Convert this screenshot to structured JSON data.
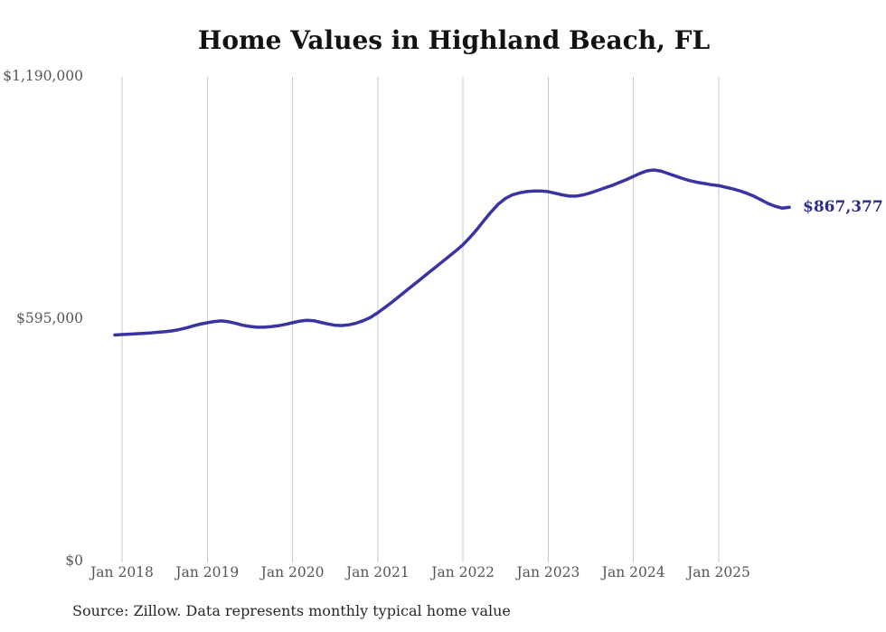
{
  "source_note": "Source: Zillow. Data represents monthly typical home value",
  "chart_data": {
    "type": "line",
    "title": "Home Values in Highland Beach, FL",
    "xlabel": "",
    "ylabel": "",
    "ylim": [
      0,
      1190000
    ],
    "grid": "vertical-only",
    "legend": "none",
    "line_color": "#3a34a3",
    "end_label_color": "#2b2d8e",
    "end_label": "$867,377",
    "end_value": 867377,
    "x_ticks": [
      "Jan 2018",
      "Jan 2019",
      "Jan 2020",
      "Jan 2021",
      "Jan 2022",
      "Jan 2023",
      "Jan 2024",
      "Jan 2025"
    ],
    "y_ticks": [
      {
        "label": "$1,190,000",
        "value": 1190000
      },
      {
        "label": "$595,000",
        "value": 595000
      },
      {
        "label": "$0",
        "value": 0
      }
    ],
    "series": [
      {
        "name": "Typical home value",
        "start_month": "2017-12",
        "end_month": "2025-11",
        "values": [
          554000,
          555000,
          556000,
          557000,
          558000,
          559000,
          560500,
          562000,
          564000,
          567000,
          571000,
          576000,
          580500,
          584000,
          587000,
          588500,
          586500,
          582500,
          578000,
          575000,
          573000,
          573000,
          574500,
          576500,
          580000,
          584000,
          588000,
          590000,
          589000,
          585000,
          581000,
          578000,
          577000,
          579000,
          583000,
          589000,
          597000,
          608000,
          621000,
          634000,
          648000,
          662000,
          676000,
          690000,
          704000,
          718000,
          732000,
          746000,
          760000,
          775000,
          793000,
          813000,
          835000,
          856000,
          875000,
          889000,
          898000,
          903000,
          906000,
          907500,
          907500,
          906000,
          902000,
          898000,
          895000,
          895000,
          898000,
          903000,
          909000,
          915000,
          921000,
          928000,
          935000,
          943000,
          951000,
          957000,
          959000,
          956000,
          950000,
          944000,
          938000,
          933000,
          929000,
          926000,
          923000,
          921000,
          917000,
          913000,
          908000,
          902000,
          895000,
          886000,
          877000,
          870000,
          865500,
          867377
        ]
      }
    ]
  }
}
